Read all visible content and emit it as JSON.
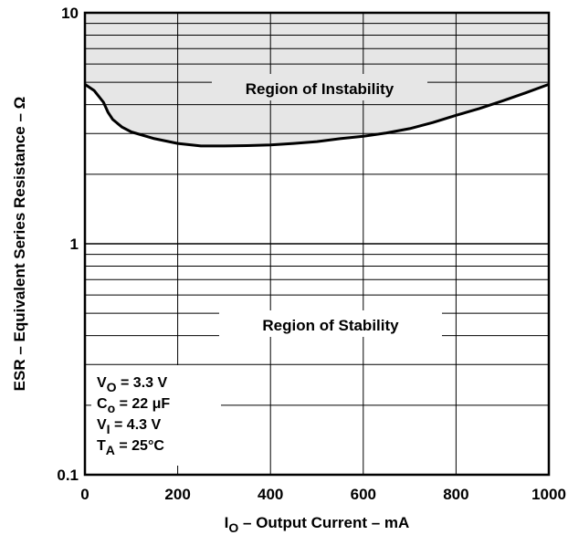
{
  "chart_data": {
    "type": "line",
    "title": "",
    "xlabel": {
      "main": "I",
      "sub": "O",
      "rest": " – Output Current – mA"
    },
    "ylabel": "ESR – Equivalent Series Resistance – Ω",
    "xlim": [
      0,
      1000
    ],
    "ylim": [
      0.1,
      10
    ],
    "yscale": "log",
    "grid": true,
    "x_ticks": [
      0,
      200,
      400,
      600,
      800,
      1000
    ],
    "x_tick_labels": [
      "0",
      "200",
      "400",
      "600",
      "800",
      "1000"
    ],
    "y_ticks": [
      0.1,
      1,
      10
    ],
    "y_tick_labels": [
      "0.1",
      "1",
      "10"
    ],
    "series": [
      {
        "x": [
          0,
          20,
          40,
          50,
          60,
          80,
          100,
          150,
          200,
          250,
          300,
          350,
          400,
          450,
          500,
          550,
          600,
          650,
          700,
          750,
          800,
          850,
          900,
          950,
          1000
        ],
        "y": [
          4.9,
          4.6,
          4.1,
          3.7,
          3.45,
          3.2,
          3.05,
          2.85,
          2.72,
          2.65,
          2.65,
          2.66,
          2.68,
          2.72,
          2.77,
          2.85,
          2.92,
          3.02,
          3.15,
          3.35,
          3.6,
          3.85,
          4.15,
          4.5,
          4.9
        ]
      }
    ],
    "annotations": {
      "instability": "Region of Instability",
      "stability": "Region of Stability"
    },
    "conditions": [
      {
        "main": "V",
        "sub": "O",
        "rest": " = 3.3 V"
      },
      {
        "main": "C",
        "sub": "o",
        "rest": " = 22 μF"
      },
      {
        "main": "V",
        "sub": "I",
        "rest": " = 4.3 V"
      },
      {
        "main": "T",
        "sub": "A",
        "rest": " = 25°C"
      }
    ],
    "colors": {
      "curve": "#000000",
      "instability_fill": "#e6e6e6",
      "grid": "#000000"
    }
  }
}
